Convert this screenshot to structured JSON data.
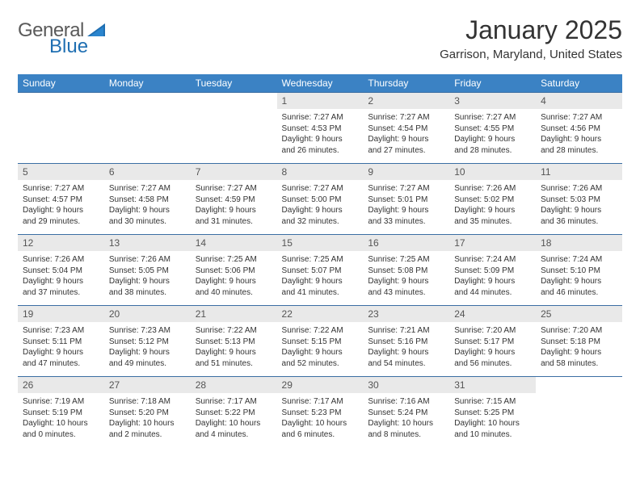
{
  "brand": {
    "part1": "General",
    "part2": "Blue"
  },
  "title": "January 2025",
  "location": "Garrison, Maryland, United States",
  "weekdays": [
    "Sunday",
    "Monday",
    "Tuesday",
    "Wednesday",
    "Thursday",
    "Friday",
    "Saturday"
  ],
  "colors": {
    "header_bg": "#3b82c4",
    "header_text": "#ffffff",
    "daynum_bg": "#e9e9e9",
    "daynum_text": "#555555",
    "body_text": "#333333",
    "row_border": "#3b6ea3",
    "brand_gray": "#5a5a5a",
    "brand_blue": "#1f6fb2",
    "page_bg": "#ffffff"
  },
  "first_day_column": 3,
  "days": [
    {
      "n": "1",
      "sunrise": "7:27 AM",
      "sunset": "4:53 PM",
      "day_h": 9,
      "day_m": 26
    },
    {
      "n": "2",
      "sunrise": "7:27 AM",
      "sunset": "4:54 PM",
      "day_h": 9,
      "day_m": 27
    },
    {
      "n": "3",
      "sunrise": "7:27 AM",
      "sunset": "4:55 PM",
      "day_h": 9,
      "day_m": 28
    },
    {
      "n": "4",
      "sunrise": "7:27 AM",
      "sunset": "4:56 PM",
      "day_h": 9,
      "day_m": 28
    },
    {
      "n": "5",
      "sunrise": "7:27 AM",
      "sunset": "4:57 PM",
      "day_h": 9,
      "day_m": 29
    },
    {
      "n": "6",
      "sunrise": "7:27 AM",
      "sunset": "4:58 PM",
      "day_h": 9,
      "day_m": 30
    },
    {
      "n": "7",
      "sunrise": "7:27 AM",
      "sunset": "4:59 PM",
      "day_h": 9,
      "day_m": 31
    },
    {
      "n": "8",
      "sunrise": "7:27 AM",
      "sunset": "5:00 PM",
      "day_h": 9,
      "day_m": 32
    },
    {
      "n": "9",
      "sunrise": "7:27 AM",
      "sunset": "5:01 PM",
      "day_h": 9,
      "day_m": 33
    },
    {
      "n": "10",
      "sunrise": "7:26 AM",
      "sunset": "5:02 PM",
      "day_h": 9,
      "day_m": 35
    },
    {
      "n": "11",
      "sunrise": "7:26 AM",
      "sunset": "5:03 PM",
      "day_h": 9,
      "day_m": 36
    },
    {
      "n": "12",
      "sunrise": "7:26 AM",
      "sunset": "5:04 PM",
      "day_h": 9,
      "day_m": 37
    },
    {
      "n": "13",
      "sunrise": "7:26 AM",
      "sunset": "5:05 PM",
      "day_h": 9,
      "day_m": 38
    },
    {
      "n": "14",
      "sunrise": "7:25 AM",
      "sunset": "5:06 PM",
      "day_h": 9,
      "day_m": 40
    },
    {
      "n": "15",
      "sunrise": "7:25 AM",
      "sunset": "5:07 PM",
      "day_h": 9,
      "day_m": 41
    },
    {
      "n": "16",
      "sunrise": "7:25 AM",
      "sunset": "5:08 PM",
      "day_h": 9,
      "day_m": 43
    },
    {
      "n": "17",
      "sunrise": "7:24 AM",
      "sunset": "5:09 PM",
      "day_h": 9,
      "day_m": 44
    },
    {
      "n": "18",
      "sunrise": "7:24 AM",
      "sunset": "5:10 PM",
      "day_h": 9,
      "day_m": 46
    },
    {
      "n": "19",
      "sunrise": "7:23 AM",
      "sunset": "5:11 PM",
      "day_h": 9,
      "day_m": 47
    },
    {
      "n": "20",
      "sunrise": "7:23 AM",
      "sunset": "5:12 PM",
      "day_h": 9,
      "day_m": 49
    },
    {
      "n": "21",
      "sunrise": "7:22 AM",
      "sunset": "5:13 PM",
      "day_h": 9,
      "day_m": 51
    },
    {
      "n": "22",
      "sunrise": "7:22 AM",
      "sunset": "5:15 PM",
      "day_h": 9,
      "day_m": 52
    },
    {
      "n": "23",
      "sunrise": "7:21 AM",
      "sunset": "5:16 PM",
      "day_h": 9,
      "day_m": 54
    },
    {
      "n": "24",
      "sunrise": "7:20 AM",
      "sunset": "5:17 PM",
      "day_h": 9,
      "day_m": 56
    },
    {
      "n": "25",
      "sunrise": "7:20 AM",
      "sunset": "5:18 PM",
      "day_h": 9,
      "day_m": 58
    },
    {
      "n": "26",
      "sunrise": "7:19 AM",
      "sunset": "5:19 PM",
      "day_h": 10,
      "day_m": 0
    },
    {
      "n": "27",
      "sunrise": "7:18 AM",
      "sunset": "5:20 PM",
      "day_h": 10,
      "day_m": 2
    },
    {
      "n": "28",
      "sunrise": "7:17 AM",
      "sunset": "5:22 PM",
      "day_h": 10,
      "day_m": 4
    },
    {
      "n": "29",
      "sunrise": "7:17 AM",
      "sunset": "5:23 PM",
      "day_h": 10,
      "day_m": 6
    },
    {
      "n": "30",
      "sunrise": "7:16 AM",
      "sunset": "5:24 PM",
      "day_h": 10,
      "day_m": 8
    },
    {
      "n": "31",
      "sunrise": "7:15 AM",
      "sunset": "5:25 PM",
      "day_h": 10,
      "day_m": 10
    }
  ],
  "labels": {
    "sunrise": "Sunrise:",
    "sunset": "Sunset:",
    "daylight": "Daylight:"
  }
}
